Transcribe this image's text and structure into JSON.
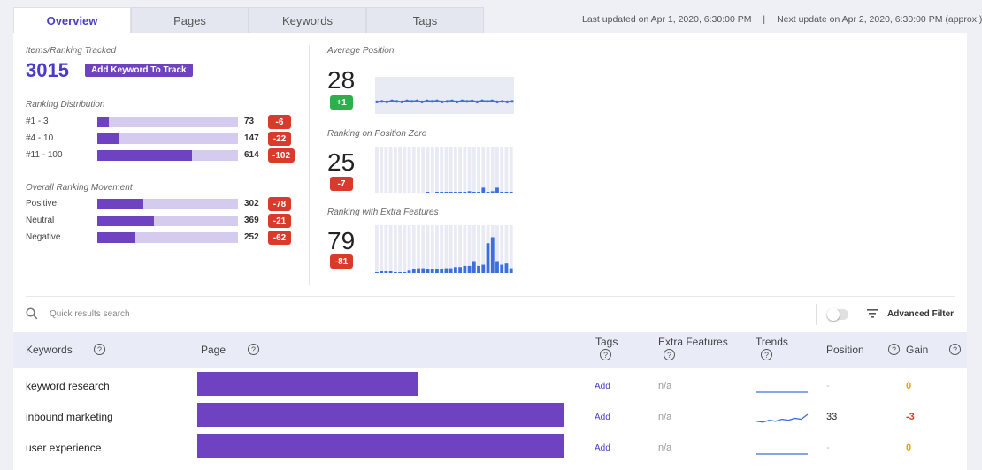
{
  "tabs": [
    "Overview",
    "Pages",
    "Keywords",
    "Tags"
  ],
  "active_tab": "Overview",
  "update_info": {
    "last": "Last updated on Apr 1, 2020, 6:30:00 PM",
    "separator": "|",
    "next": "Next update on Apr 2, 2020, 6:30:00 PM (approx.)"
  },
  "tracked": {
    "label": "Items/Ranking Tracked",
    "count": "3015",
    "button": "Add Keyword To Track"
  },
  "ranking_distribution": {
    "label": "Ranking Distribution",
    "rows": [
      {
        "label": "#1 - 3",
        "value": "73",
        "delta": "-6",
        "fraction": 0.08
      },
      {
        "label": "#4 - 10",
        "value": "147",
        "delta": "-22",
        "fraction": 0.16
      },
      {
        "label": "#11 - 100",
        "value": "614",
        "delta": "-102",
        "fraction": 0.67
      }
    ]
  },
  "movement": {
    "label": "Overall Ranking Movement",
    "rows": [
      {
        "label": "Positive",
        "value": "302",
        "delta": "-78",
        "fraction": 0.33
      },
      {
        "label": "Neutral",
        "value": "369",
        "delta": "-21",
        "fraction": 0.4
      },
      {
        "label": "Negative",
        "value": "252",
        "delta": "-62",
        "fraction": 0.27
      }
    ]
  },
  "metrics": [
    {
      "label": "Average Position",
      "value": "28",
      "delta": "+1",
      "delta_color": "#2db04a"
    },
    {
      "label": "Ranking on Position Zero",
      "value": "25",
      "delta": "-7",
      "delta_color": "#d83b2b"
    },
    {
      "label": "Ranking with Extra Features",
      "value": "79",
      "delta": "-81",
      "delta_color": "#d83b2b"
    }
  ],
  "chart_data": [
    {
      "type": "line",
      "values": [
        28,
        28.5,
        28,
        29,
        28.5,
        28,
        29,
        28.5,
        29,
        28,
        29,
        28.5,
        29,
        28,
        28.5,
        29,
        28,
        29,
        28.5,
        29,
        28,
        29,
        28.5,
        29,
        28,
        28.5,
        28,
        28.5
      ],
      "ylim": [
        0,
        35
      ]
    },
    {
      "type": "bar",
      "values": [
        0,
        0,
        0,
        0,
        0,
        0,
        0,
        0,
        0,
        0,
        0,
        1,
        0,
        1,
        1,
        1,
        1,
        1,
        1,
        1,
        2,
        1,
        1,
        5,
        1,
        2,
        5,
        1,
        1,
        1
      ],
      "ylim": [
        0,
        40
      ]
    },
    {
      "type": "bar",
      "values": [
        0,
        1,
        1,
        1,
        0,
        0,
        0,
        2,
        3,
        4,
        4,
        3,
        3,
        3,
        3,
        4,
        4,
        5,
        5,
        6,
        6,
        10,
        6,
        7,
        25,
        30,
        10,
        7,
        8,
        4
      ],
      "ylim": [
        0,
        40
      ]
    }
  ],
  "search": {
    "placeholder": "Quick results search"
  },
  "filter_label": "Advanced Filter",
  "table": {
    "headers": {
      "keywords": "Keywords",
      "page": "Page",
      "tags": "Tags",
      "extra": "Extra Features",
      "trends": "Trends",
      "position": "Position",
      "gain": "Gain",
      "help": "?"
    },
    "rows": [
      {
        "keyword": "keyword research",
        "page_fraction": 0.6,
        "tags": "Add",
        "extra": "n/a",
        "position": "-",
        "gain": "0",
        "gain_color": "#f0a300",
        "trend": [
          0,
          0,
          0,
          0,
          0,
          0,
          0
        ]
      },
      {
        "keyword": "inbound marketing",
        "page_fraction": 1.0,
        "tags": "Add",
        "extra": "n/a",
        "position": "33",
        "gain": "-3",
        "gain_color": "#d83b2b",
        "trend": [
          2,
          1,
          3,
          2,
          4,
          3,
          5,
          4,
          9
        ]
      },
      {
        "keyword": "user experience",
        "page_fraction": 1.0,
        "tags": "Add",
        "extra": "n/a",
        "position": "-",
        "gain": "0",
        "gain_color": "#f0a300",
        "trend": [
          0,
          0,
          0,
          0,
          0,
          0,
          0
        ]
      }
    ]
  }
}
